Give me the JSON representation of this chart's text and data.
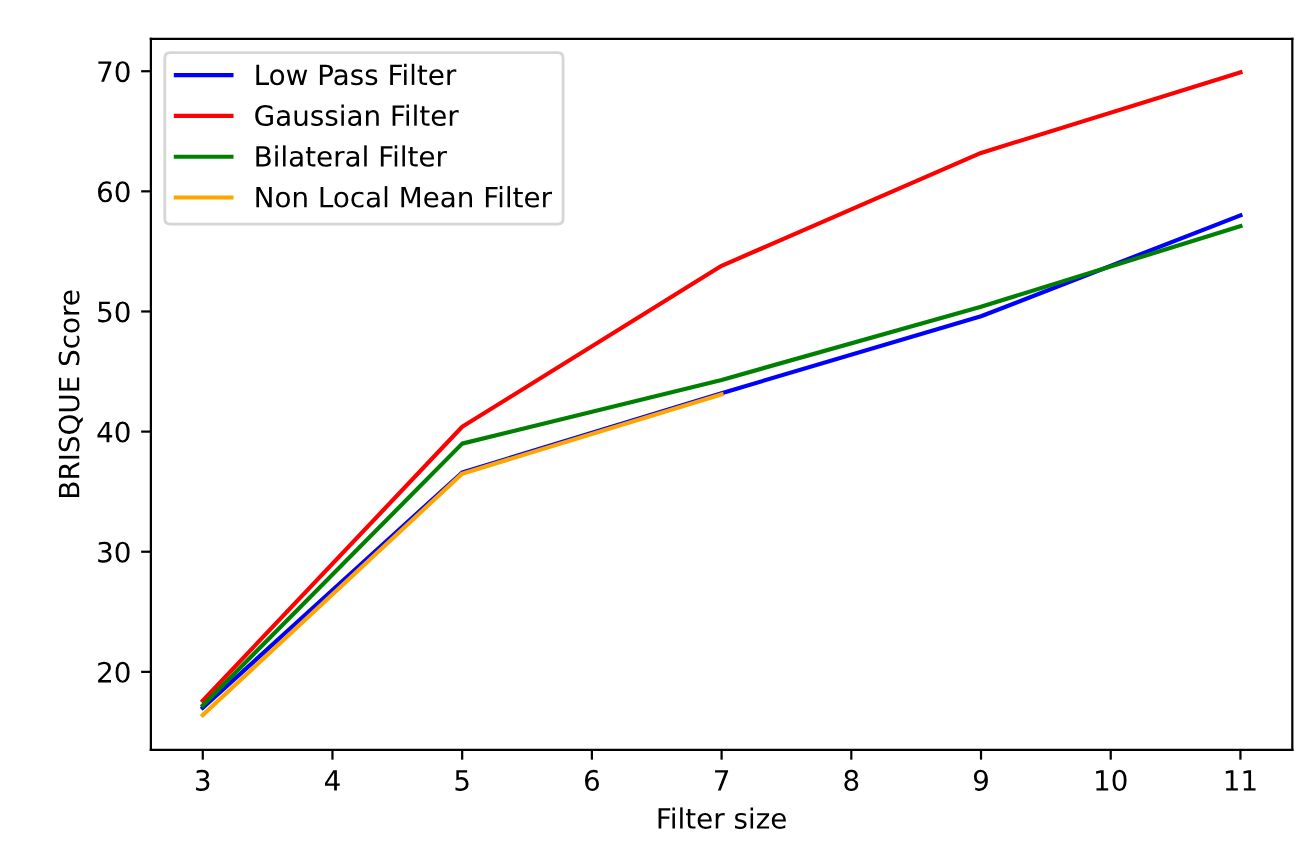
{
  "chart_data": {
    "type": "line",
    "xlabel": "Filter size",
    "ylabel": "BRISQUE Score",
    "xlim": [
      2.6,
      11.4
    ],
    "xticks": [
      3,
      4,
      5,
      6,
      7,
      8,
      9,
      10,
      11
    ],
    "ylim": [
      13.5,
      72.7
    ],
    "yticks": [
      20,
      30,
      40,
      50,
      60,
      70
    ],
    "legend": "top left",
    "grid": false,
    "series": [
      {
        "name": "Low Pass Filter",
        "color": "#0000ff",
        "x": [
          3,
          5,
          7,
          9,
          11
        ],
        "values": [
          17.0,
          36.6,
          43.2,
          49.6,
          58.0
        ]
      },
      {
        "name": "Gaussian Filter",
        "color": "#ff0000",
        "x": [
          3,
          5,
          7,
          9,
          11
        ],
        "values": [
          17.6,
          40.4,
          53.8,
          63.2,
          69.9
        ]
      },
      {
        "name": "Bilateral Filter",
        "color": "#008000",
        "x": [
          3,
          5,
          7,
          9,
          11
        ],
        "values": [
          17.2,
          39.0,
          44.3,
          50.4,
          57.1
        ]
      },
      {
        "name": "Non Local Mean Filter",
        "color": "#ffa500",
        "x": [
          3,
          5,
          7
        ],
        "values": [
          16.4,
          36.5,
          43.1
        ]
      }
    ]
  }
}
